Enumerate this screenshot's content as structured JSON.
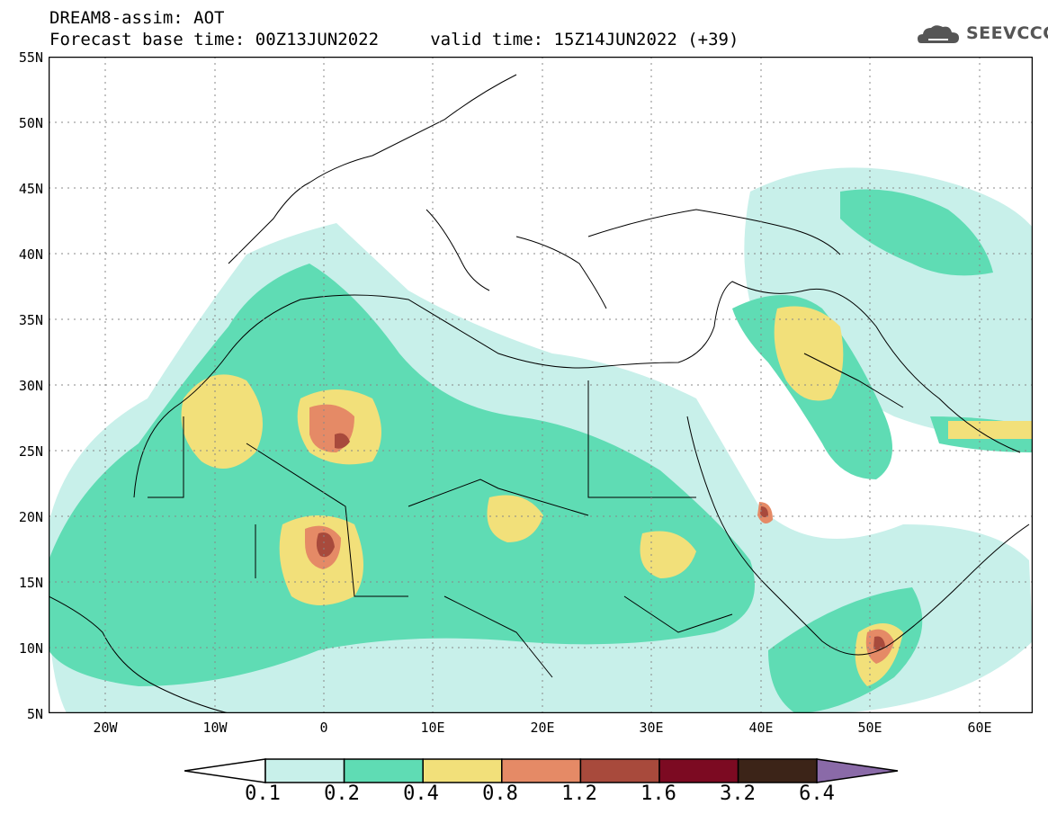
{
  "header": {
    "title_line1": "DREAM8-assim: AOT",
    "title_line2": "Forecast base time: 00Z13JUN2022     valid time: 15Z14JUN2022 (+39)",
    "logo_text": "SEEVCCC"
  },
  "map": {
    "latitude_labels": [
      "55N",
      "50N",
      "45N",
      "40N",
      "35N",
      "30N",
      "25N",
      "20N",
      "15N",
      "10N",
      "5N"
    ],
    "longitude_labels": [
      "20W",
      "10W",
      "0",
      "10E",
      "20E",
      "30E",
      "40E",
      "50E",
      "60E"
    ]
  },
  "legend": {
    "levels": [
      "0.1",
      "0.2",
      "0.4",
      "0.8",
      "1.2",
      "1.6",
      "3.2",
      "6.4"
    ],
    "colors": [
      "#c8f0ea",
      "#5fdcb4",
      "#f2e07a",
      "#e58a66",
      "#a84a3c",
      "#7c0a22",
      "#3c2418",
      "#8a6aa8"
    ]
  }
}
